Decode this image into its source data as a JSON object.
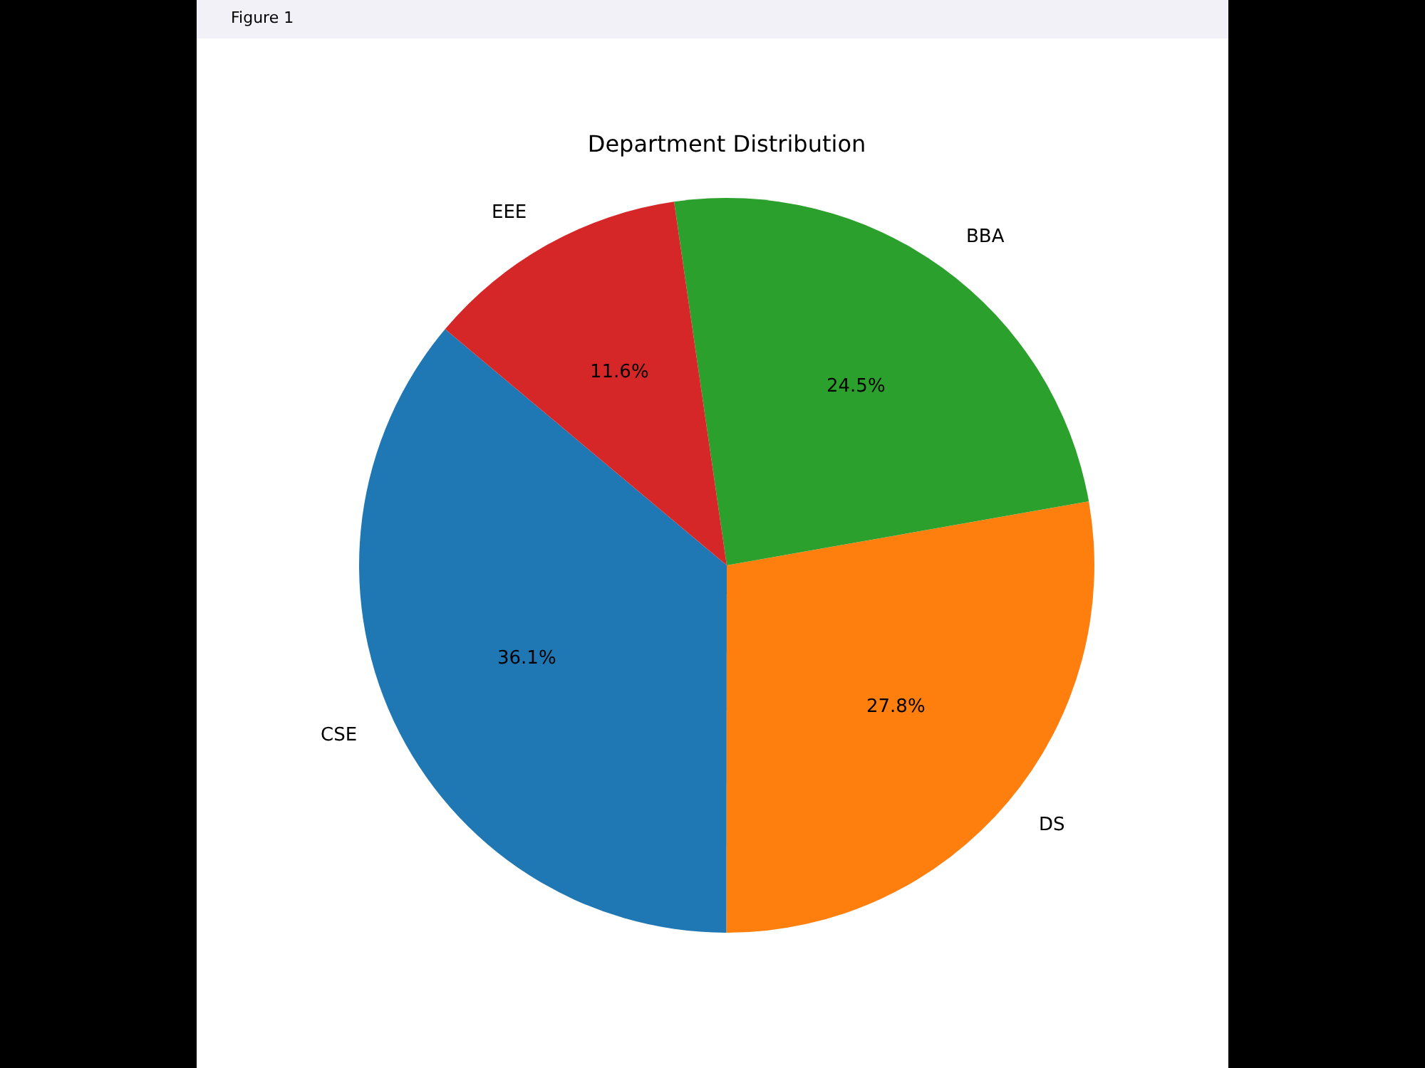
{
  "chart_data": {
    "type": "pie",
    "title": "Department Distribution",
    "annotations": [
      "Figure 1"
    ],
    "categories": [
      "CSE",
      "DS",
      "BBA",
      "EEE"
    ],
    "values": [
      36.1,
      27.8,
      24.5,
      11.6
    ],
    "colors": [
      "#1f77b4",
      "#ff7f0e",
      "#2ca02c",
      "#d62728"
    ],
    "value_labels": [
      "36.1%",
      "27.8%",
      "24.5%",
      "11.6%"
    ]
  }
}
